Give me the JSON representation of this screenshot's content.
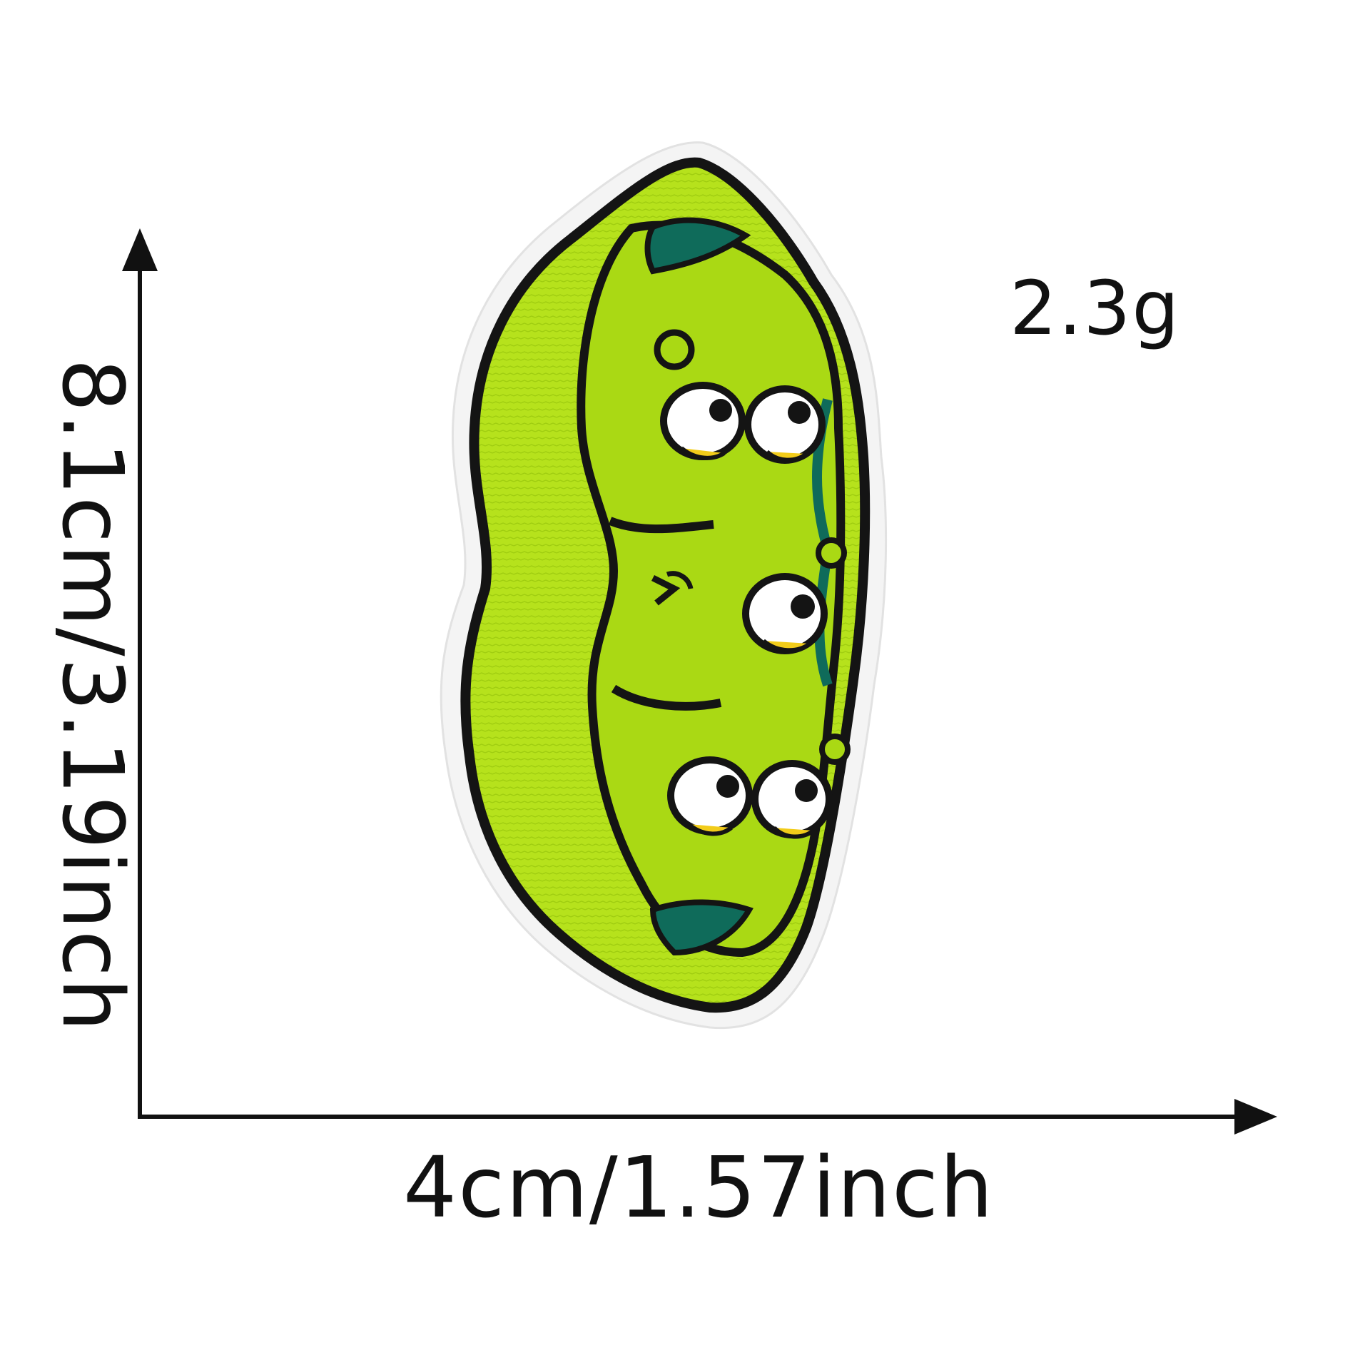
{
  "product": {
    "weight": "2.3g",
    "width_label": "4cm/1.57inch",
    "height_label": "8.1cm/3.19inch",
    "illustration": "embroidered-pea-pod-patch"
  },
  "colors": {
    "background": "#ffffff",
    "text": "#111111",
    "pod_green": "#b6e21c",
    "pod_inner": "#a9d914",
    "outline": "#141414",
    "patch_border": "#f4f4f4",
    "teal_accent": "#0f6b5a",
    "eye_white": "#ffffff",
    "eye_yellow": "#f2cc1a"
  }
}
